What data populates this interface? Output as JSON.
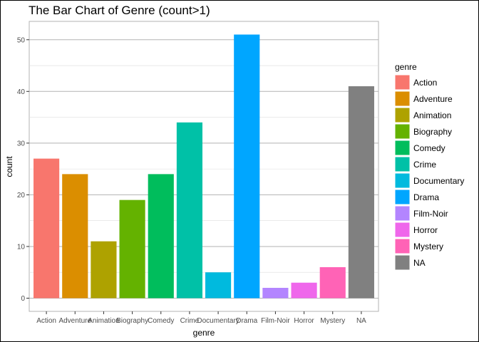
{
  "chart_data": {
    "type": "bar",
    "title": "The Bar Chart of Genre (count>1)",
    "xlabel": "genre",
    "ylabel": "count",
    "categories": [
      "Action",
      "Adventure",
      "Animation",
      "Biography",
      "Comedy",
      "Crime",
      "Documentary",
      "Drama",
      "Film-Noir",
      "Horror",
      "Mystery",
      "NA"
    ],
    "values": [
      27,
      24,
      11,
      19,
      24,
      34,
      5,
      51,
      2,
      3,
      6,
      41
    ],
    "colors": [
      "#F8766D",
      "#DB8E00",
      "#AEA200",
      "#64B200",
      "#00BD5C",
      "#00C1A7",
      "#00BADE",
      "#00A6FF",
      "#B385FF",
      "#EF67EB",
      "#FF63B6",
      "#808080"
    ],
    "ylim": [
      -2.55,
      53.55
    ],
    "yticks": [
      0,
      10,
      20,
      30,
      40,
      50
    ],
    "grid": true,
    "legend": {
      "title": "genre",
      "placement": "right",
      "items": [
        "Action",
        "Adventure",
        "Animation",
        "Biography",
        "Comedy",
        "Crime",
        "Documentary",
        "Drama",
        "Film-Noir",
        "Horror",
        "Mystery",
        "NA"
      ]
    }
  }
}
